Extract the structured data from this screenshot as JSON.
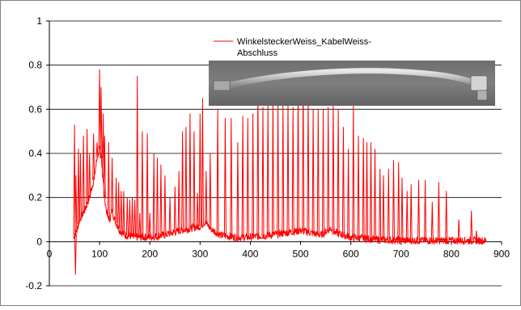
{
  "chart_data": {
    "type": "line",
    "title": "",
    "xlabel": "",
    "ylabel": "",
    "xlim": [
      0,
      900
    ],
    "ylim": [
      -0.2,
      1
    ],
    "x_ticks": [
      0,
      100,
      200,
      300,
      400,
      500,
      600,
      700,
      800,
      900
    ],
    "y_ticks": [
      -0.2,
      0,
      0.2,
      0.4,
      0.6,
      0.8,
      1
    ],
    "x_tick_labels": [
      "0",
      "100",
      "200",
      "300",
      "400",
      "500",
      "600",
      "700",
      "800",
      "900"
    ],
    "y_tick_labels": [
      "-0.2",
      "0",
      "0.2",
      "0.4",
      "0.6",
      "0.8",
      "1"
    ],
    "grid": "horizontal",
    "legend_position": "top-right",
    "colors": {
      "series": "#ff0000",
      "axis": "#000000",
      "grid": "#000000",
      "frame": "#808080"
    },
    "series": [
      {
        "name": "WinkelsteckerWeiss_KabelWeiss-Abschluss",
        "legend_lines": [
          "WinkelsteckerWeiss_KabelWeiss-",
          "Abschluss"
        ],
        "baseline": [
          [
            48,
            0.02
          ],
          [
            55,
            0.05
          ],
          [
            60,
            0.1
          ],
          [
            70,
            0.14
          ],
          [
            80,
            0.2
          ],
          [
            90,
            0.3
          ],
          [
            95,
            0.38
          ],
          [
            100,
            0.42
          ],
          [
            105,
            0.35
          ],
          [
            110,
            0.2
          ],
          [
            115,
            0.12
          ],
          [
            120,
            0.1
          ],
          [
            125,
            0.14
          ],
          [
            130,
            0.1
          ],
          [
            140,
            0.05
          ],
          [
            150,
            0.03
          ],
          [
            170,
            0.02
          ],
          [
            200,
            0.02
          ],
          [
            230,
            0.03
          ],
          [
            260,
            0.05
          ],
          [
            280,
            0.06
          ],
          [
            300,
            0.07
          ],
          [
            310,
            0.09
          ],
          [
            320,
            0.06
          ],
          [
            340,
            0.03
          ],
          [
            370,
            0.02
          ],
          [
            400,
            0.02
          ],
          [
            440,
            0.03
          ],
          [
            470,
            0.04
          ],
          [
            500,
            0.05
          ],
          [
            520,
            0.04
          ],
          [
            540,
            0.03
          ],
          [
            560,
            0.06
          ],
          [
            570,
            0.04
          ],
          [
            600,
            0.02
          ],
          [
            650,
            0.01
          ],
          [
            700,
            0.005
          ],
          [
            750,
            0.005
          ],
          [
            800,
            0.005
          ],
          [
            860,
            0.005
          ],
          [
            870,
            0.005
          ]
        ],
        "peaks": [
          [
            50,
            0.53
          ],
          [
            52,
            -0.15
          ],
          [
            53,
            0.3
          ],
          [
            58,
            0.42
          ],
          [
            62,
            0.4
          ],
          [
            68,
            0.48
          ],
          [
            75,
            0.51
          ],
          [
            80,
            0.4
          ],
          [
            88,
            0.49
          ],
          [
            95,
            0.45
          ],
          [
            100,
            0.78
          ],
          [
            103,
            0.7
          ],
          [
            107,
            0.58
          ],
          [
            110,
            0.48
          ],
          [
            118,
            0.45
          ],
          [
            125,
            0.38
          ],
          [
            133,
            0.29
          ],
          [
            138,
            0.27
          ],
          [
            143,
            0.23
          ],
          [
            148,
            0.23
          ],
          [
            155,
            0.2
          ],
          [
            160,
            0.19
          ],
          [
            165,
            0.2
          ],
          [
            170,
            0.19
          ],
          [
            175,
            0.75
          ],
          [
            180,
            0.13
          ],
          [
            185,
            0.5
          ],
          [
            195,
            0.49
          ],
          [
            200,
            0.13
          ],
          [
            208,
            0.4
          ],
          [
            215,
            0.38
          ],
          [
            222,
            0.35
          ],
          [
            230,
            0.3
          ],
          [
            240,
            0.2
          ],
          [
            250,
            0.25
          ],
          [
            258,
            0.32
          ],
          [
            265,
            0.5
          ],
          [
            272,
            0.52
          ],
          [
            280,
            0.58
          ],
          [
            288,
            0.5
          ],
          [
            295,
            0.22
          ],
          [
            300,
            0.58
          ],
          [
            305,
            0.65
          ],
          [
            312,
            0.32
          ],
          [
            320,
            0.4
          ],
          [
            335,
            0.6
          ],
          [
            350,
            0.56
          ],
          [
            362,
            0.56
          ],
          [
            375,
            0.45
          ],
          [
            385,
            0.57
          ],
          [
            395,
            0.56
          ],
          [
            405,
            0.58
          ],
          [
            415,
            0.7
          ],
          [
            425,
            0.61
          ],
          [
            435,
            0.62
          ],
          [
            445,
            0.65
          ],
          [
            455,
            0.62
          ],
          [
            465,
            0.62
          ],
          [
            475,
            0.63
          ],
          [
            485,
            0.61
          ],
          [
            495,
            0.68
          ],
          [
            505,
            0.73
          ],
          [
            515,
            0.66
          ],
          [
            525,
            0.6
          ],
          [
            535,
            0.6
          ],
          [
            545,
            0.6
          ],
          [
            555,
            0.61
          ],
          [
            565,
            0.63
          ],
          [
            575,
            0.6
          ],
          [
            585,
            0.52
          ],
          [
            595,
            0.42
          ],
          [
            605,
            0.62
          ],
          [
            615,
            0.48
          ],
          [
            625,
            0.47
          ],
          [
            632,
            0.45
          ],
          [
            640,
            0.45
          ],
          [
            648,
            0.42
          ],
          [
            658,
            0.33
          ],
          [
            665,
            0.3
          ],
          [
            675,
            0.33
          ],
          [
            685,
            0.37
          ],
          [
            695,
            0.36
          ],
          [
            702,
            0.29
          ],
          [
            712,
            0.23
          ],
          [
            720,
            0.26
          ],
          [
            735,
            0.28
          ],
          [
            748,
            0.28
          ],
          [
            762,
            0.18
          ],
          [
            775,
            0.27
          ],
          [
            790,
            0.23
          ],
          [
            815,
            0.1
          ],
          [
            840,
            0.14
          ],
          [
            850,
            0.05
          ]
        ]
      }
    ]
  }
}
